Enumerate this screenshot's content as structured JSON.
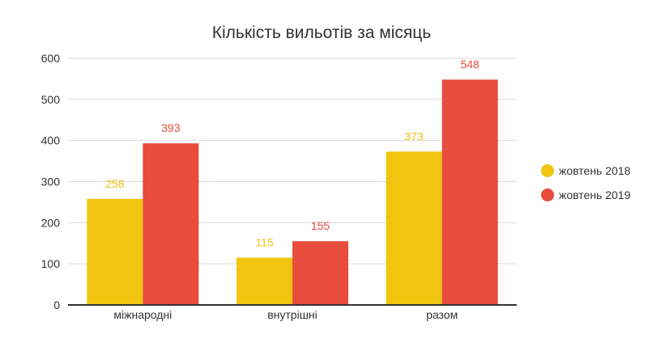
{
  "chart_data": {
    "type": "bar",
    "title": "Кількість вильотів за місяць",
    "categories": [
      "міжнародні",
      "внутрішні",
      "разом"
    ],
    "series": [
      {
        "name": "жовтень 2018",
        "color": "#f1c40f",
        "values": [
          258,
          115,
          373
        ]
      },
      {
        "name": "жовтень 2019",
        "color": "#e74c3c",
        "values": [
          393,
          155,
          548
        ]
      }
    ],
    "ylim": [
      0,
      600
    ],
    "yticks": [
      0,
      100,
      200,
      300,
      400,
      500,
      600
    ],
    "grid": true,
    "legend": "right"
  }
}
